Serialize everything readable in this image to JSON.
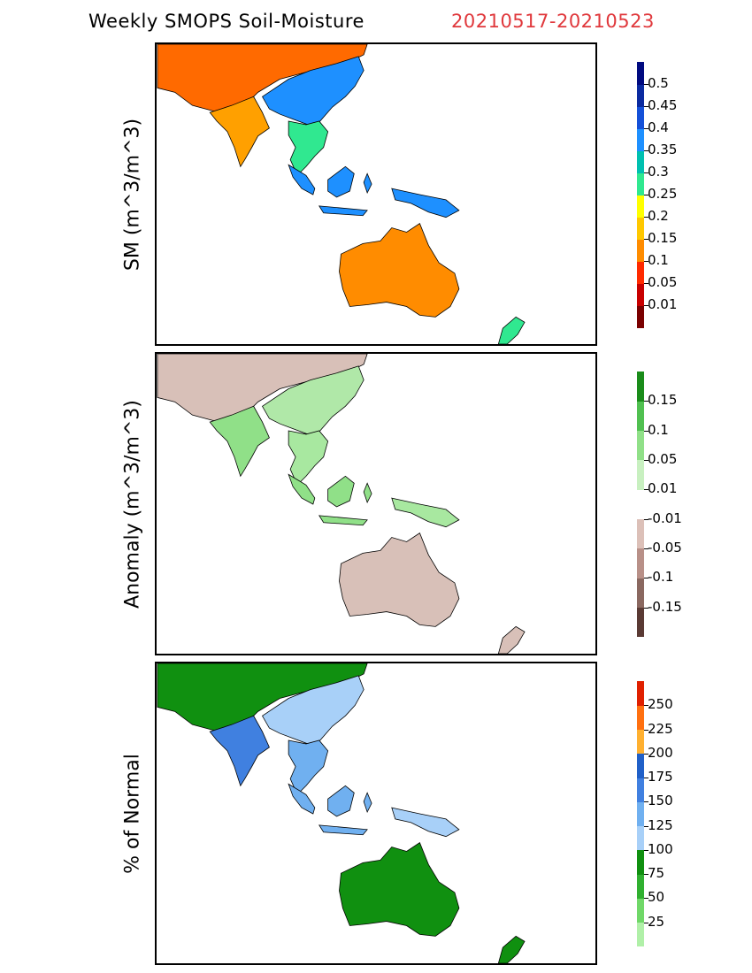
{
  "header": {
    "title": "Weekly SMOPS Soil-Moisture",
    "date_range": "20210517-20210523",
    "date_color": "#e0383c"
  },
  "panels": [
    {
      "id": "sm",
      "ylabel": "SM (m^3/m^3)",
      "colorbar": [
        {
          "color": "#7a0000",
          "label": "0.01"
        },
        {
          "color": "#c80000",
          "label": "0.05"
        },
        {
          "color": "#ff2a00",
          "label": "0.1"
        },
        {
          "color": "#ff8c00",
          "label": "0.15"
        },
        {
          "color": "#ffc800",
          "label": "0.2"
        },
        {
          "color": "#ffff00",
          "label": "0.25"
        },
        {
          "color": "#30e890",
          "label": "0.3"
        },
        {
          "color": "#00c0b0",
          "label": "0.35"
        },
        {
          "color": "#1e90ff",
          "label": "0.4"
        },
        {
          "color": "#1450d8",
          "label": "0.45"
        },
        {
          "color": "#0a2aa0",
          "label": "0.5"
        },
        {
          "color": "#000a80",
          "label": ""
        }
      ],
      "map_colors": {
        "north_asia": "#ff6a00",
        "india": "#ffa000",
        "china_east": "#1e90ff",
        "se_asia": "#30e890",
        "maritime": "#1e90ff",
        "png": "#1e90ff",
        "australia": "#ff8c00",
        "nz": "#30e890"
      }
    },
    {
      "id": "anomaly",
      "ylabel": "Anomaly (m^3/m^3)",
      "colorbar": [
        {
          "color": "#5a3a34",
          "label": "-0.15"
        },
        {
          "color": "#8a6860",
          "label": "-0.1"
        },
        {
          "color": "#b89088",
          "label": "-0.05"
        },
        {
          "color": "#dcc0b8",
          "label": "-0.01"
        },
        {
          "color": "#ffffff",
          "label": "0.01"
        },
        {
          "color": "#c8f0c0",
          "label": "0.05"
        },
        {
          "color": "#90e088",
          "label": "0.1"
        },
        {
          "color": "#50c050",
          "label": "0.15"
        },
        {
          "color": "#1a8c1a",
          "label": ""
        }
      ],
      "map_colors": {
        "north_asia": "#d8c0b8",
        "india": "#90e088",
        "china_east": "#b0e8a8",
        "se_asia": "#a8e8a0",
        "maritime": "#90e088",
        "png": "#a8e8a0",
        "australia": "#d8c0b8",
        "nz": "#d8c0b8"
      }
    },
    {
      "id": "percent",
      "ylabel": "% of Normal",
      "colorbar": [
        {
          "color": "#b0f0a8",
          "label": "25"
        },
        {
          "color": "#70d868",
          "label": "50"
        },
        {
          "color": "#30b030",
          "label": "75"
        },
        {
          "color": "#109010",
          "label": "100"
        },
        {
          "color": "#a8d0f8",
          "label": "125"
        },
        {
          "color": "#70b0f0",
          "label": "150"
        },
        {
          "color": "#4080e0",
          "label": "175"
        },
        {
          "color": "#2060c8",
          "label": "200"
        },
        {
          "color": "#ffb030",
          "label": "225"
        },
        {
          "color": "#ff7010",
          "label": "250"
        },
        {
          "color": "#e02000",
          "label": ""
        }
      ],
      "map_colors": {
        "north_asia": "#109010",
        "india": "#4080e0",
        "china_east": "#a8d0f8",
        "se_asia": "#70b0f0",
        "maritime": "#70b0f0",
        "png": "#a8d0f8",
        "australia": "#109010",
        "nz": "#109010"
      }
    }
  ]
}
